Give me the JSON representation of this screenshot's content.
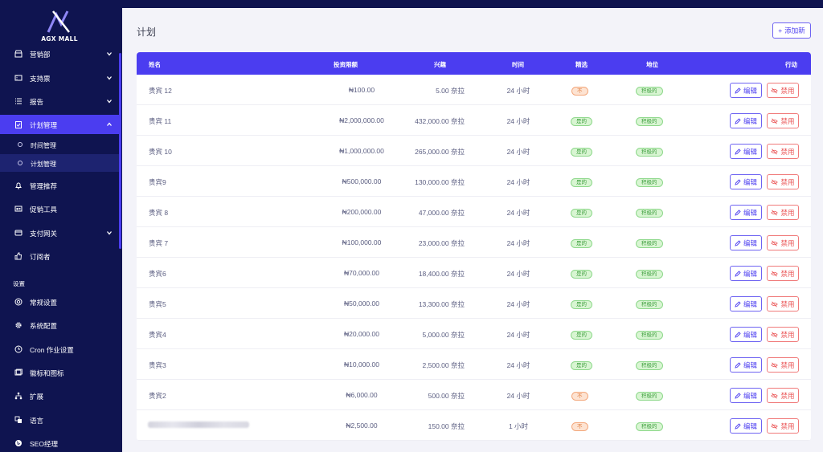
{
  "sidebar": {
    "brand": "AGX MALL",
    "items_top": [
      {
        "label": "营销部",
        "icon": "store-icon",
        "chevron": true
      },
      {
        "label": "支持票",
        "icon": "ticket-icon",
        "chevron": true
      },
      {
        "label": "报告",
        "icon": "list-icon",
        "chevron": true
      },
      {
        "label": "计划管理",
        "icon": "clipboard-icon",
        "chevron": true,
        "active": true
      }
    ],
    "sub_items": [
      {
        "label": "时间管理"
      },
      {
        "label": "计划管理",
        "active": true
      }
    ],
    "items_mid": [
      {
        "label": "管理推荐",
        "icon": "bell-icon",
        "chevron": false
      },
      {
        "label": "促销工具",
        "icon": "ad-icon",
        "chevron": false
      },
      {
        "label": "支付网关",
        "icon": "card-icon",
        "chevron": true
      },
      {
        "label": "订阅者",
        "icon": "thumbs-up-icon",
        "chevron": false
      }
    ],
    "section_label": "设置",
    "items_settings": [
      {
        "label": "常规设置",
        "icon": "life-ring-icon"
      },
      {
        "label": "系统配置",
        "icon": "cog-icon"
      },
      {
        "label": "Cron 作业设置",
        "icon": "clock-icon"
      },
      {
        "label": "徽标和图标",
        "icon": "image-icon"
      },
      {
        "label": "扩展",
        "icon": "sitemap-icon"
      },
      {
        "label": "语言",
        "icon": "language-icon"
      },
      {
        "label": "SEO经理",
        "icon": "globe-icon"
      }
    ]
  },
  "page": {
    "title": "计划",
    "add_button": "添加新"
  },
  "table": {
    "headers": {
      "name": "姓名",
      "amount": "投资限额",
      "interest": "兴趣",
      "time": "时间",
      "featured": "精选",
      "status": "地位",
      "action": "行动"
    },
    "edit_label": "编辑",
    "disable_label": "禁用",
    "rows": [
      {
        "name": "贵宾 12",
        "amount": "₦100.00",
        "interest": "5.00 奈拉",
        "time": "24 小时",
        "featured": "不",
        "status": "积极的"
      },
      {
        "name": "贵宾 11",
        "amount": "₦2,000,000.00",
        "interest": "432,000.00 奈拉",
        "time": "24 小时",
        "featured": "是的",
        "status": "积极的"
      },
      {
        "name": "贵宾 10",
        "amount": "₦1,000,000.00",
        "interest": "265,000.00 奈拉",
        "time": "24 小时",
        "featured": "是的",
        "status": "积极的"
      },
      {
        "name": "贵宾9",
        "amount": "₦500,000.00",
        "interest": "130,000.00 奈拉",
        "time": "24 小时",
        "featured": "是的",
        "status": "积极的"
      },
      {
        "name": "贵宾 8",
        "amount": "₦200,000.00",
        "interest": "47,000.00 奈拉",
        "time": "24 小时",
        "featured": "是的",
        "status": "积极的"
      },
      {
        "name": "贵宾 7",
        "amount": "₦100,000.00",
        "interest": "23,000.00 奈拉",
        "time": "24 小时",
        "featured": "是的",
        "status": "积极的"
      },
      {
        "name": "贵宾6",
        "amount": "₦70,000.00",
        "interest": "18,400.00 奈拉",
        "time": "24 小时",
        "featured": "是的",
        "status": "积极的"
      },
      {
        "name": "贵宾5",
        "amount": "₦50,000.00",
        "interest": "13,300.00 奈拉",
        "time": "24 小时",
        "featured": "是的",
        "status": "积极的"
      },
      {
        "name": "贵宾4",
        "amount": "₦20,000.00",
        "interest": "5,000.00 奈拉",
        "time": "24 小时",
        "featured": "是的",
        "status": "积极的"
      },
      {
        "name": "贵宾3",
        "amount": "₦10,000.00",
        "interest": "2,500.00 奈拉",
        "time": "24 小时",
        "featured": "是的",
        "status": "积极的"
      },
      {
        "name": "贵宾2",
        "amount": "₦6,000.00",
        "interest": "500.00 奈拉",
        "time": "24 小时",
        "featured": "不",
        "status": "积极的"
      },
      {
        "name": "",
        "amount": "₦2,500.00",
        "interest": "150.00 奈拉",
        "time": "1 小时",
        "featured": "不",
        "status": "积极的",
        "name_blurred": true
      }
    ]
  },
  "colors": {
    "sidebar_bg": "#0f1450",
    "accent": "#4b3df0",
    "success": "#3e9e3e",
    "warning": "#e07a3a",
    "danger": "#ea5455"
  }
}
